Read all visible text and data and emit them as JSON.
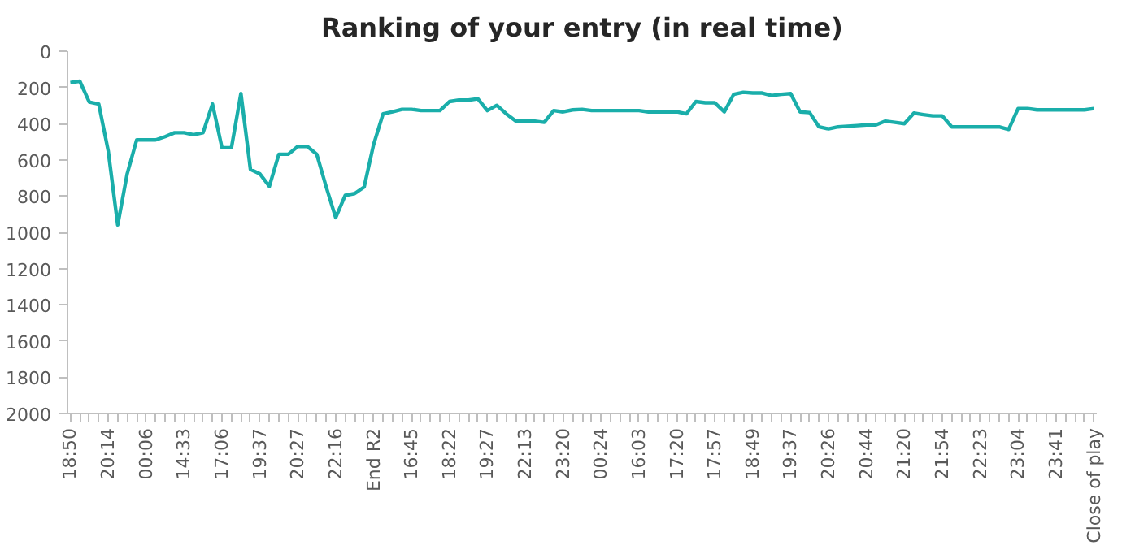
{
  "chart_data": {
    "type": "line",
    "title": "Ranking of your entry (in real time)",
    "categories": [
      "18:50",
      null,
      null,
      null,
      "20:14",
      null,
      null,
      null,
      "00:06",
      null,
      null,
      null,
      "14:33",
      null,
      null,
      null,
      "17:06",
      null,
      null,
      null,
      "19:37",
      null,
      null,
      null,
      "20:27",
      null,
      null,
      null,
      "22:16",
      null,
      null,
      null,
      "End R2",
      null,
      null,
      null,
      "16:45",
      null,
      null,
      null,
      "18:22",
      null,
      null,
      null,
      "19:27",
      null,
      null,
      null,
      "22:13",
      null,
      null,
      null,
      "23:20",
      null,
      null,
      null,
      "00:24",
      null,
      null,
      null,
      "16:03",
      null,
      null,
      null,
      "17:20",
      null,
      null,
      null,
      "17:57",
      null,
      null,
      null,
      "18:49",
      null,
      null,
      null,
      "19:37",
      null,
      null,
      null,
      "20:26",
      null,
      null,
      null,
      "20:44",
      null,
      null,
      null,
      "21:20",
      null,
      null,
      null,
      "21:54",
      null,
      null,
      null,
      "22:23",
      null,
      null,
      null,
      "23:04",
      null,
      null,
      null,
      "23:41",
      null,
      null,
      null,
      "Close of play"
    ],
    "series": [
      {
        "color": "#1aaeaa",
        "values": [
          173,
          166,
          281,
          292,
          551,
          959,
          677,
          490,
          490,
          490,
          472,
          450,
          450,
          461,
          450,
          292,
          533,
          533,
          234,
          652,
          677,
          746,
          569,
          569,
          526,
          526,
          569,
          750,
          919,
          796,
          786,
          750,
          515,
          346,
          335,
          321,
          321,
          328,
          328,
          328,
          278,
          270,
          270,
          263,
          328,
          299,
          346,
          386,
          386,
          386,
          393,
          328,
          335,
          324,
          321,
          328,
          328,
          328,
          328,
          328,
          328,
          335,
          335,
          335,
          335,
          346,
          278,
          285,
          285,
          335,
          238,
          227,
          231,
          231,
          245,
          238,
          234,
          335,
          339,
          418,
          429,
          418,
          414,
          411,
          407,
          407,
          386,
          393,
          400,
          342,
          350,
          357,
          357,
          418,
          418,
          418,
          418,
          418,
          418,
          432,
          317,
          317,
          324,
          324,
          324,
          324,
          324,
          324,
          317
        ]
      }
    ],
    "ylim": [
      2000,
      0
    ],
    "yticks": [
      0,
      200,
      400,
      600,
      800,
      1000,
      1200,
      1400,
      1600,
      1800,
      2000
    ],
    "grid": false,
    "marker": "none",
    "line_style": "solid"
  }
}
